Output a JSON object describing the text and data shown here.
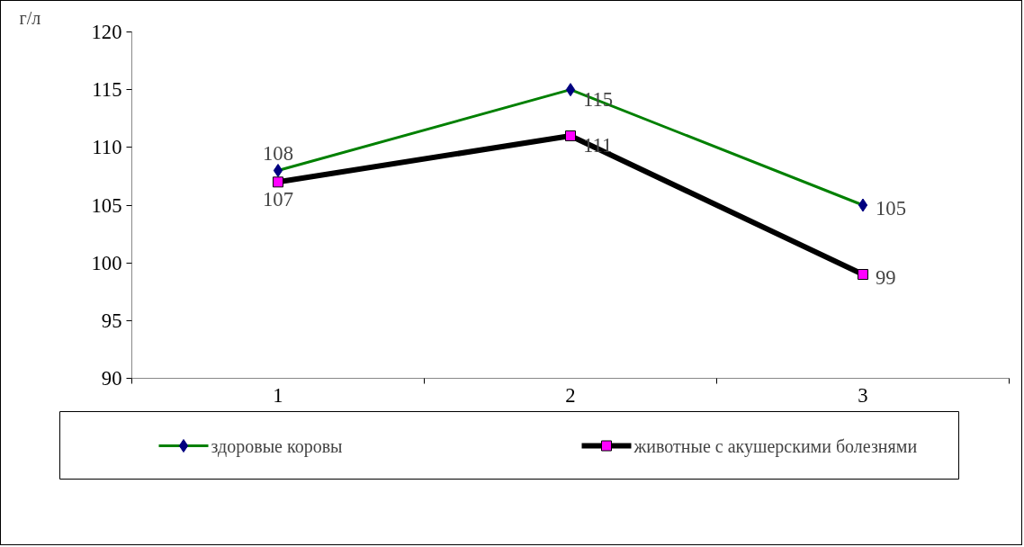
{
  "chart_data": {
    "type": "line",
    "ylabel": "г/л",
    "categories": [
      "1",
      "2",
      "3"
    ],
    "series": [
      {
        "name": "здоровые коровы",
        "color": "#008000",
        "marker": "diamond",
        "colors": [
          "#000080",
          "#000080",
          "#000080"
        ],
        "values": [
          108,
          115,
          105
        ]
      },
      {
        "name": "животные с акушерскими болезнями",
        "color": "#000000",
        "marker": "square",
        "colors": [
          "#ff00ff",
          "#ff00ff",
          "#ff00ff"
        ],
        "values": [
          107,
          111,
          99
        ]
      }
    ],
    "ylim": [
      90,
      120
    ],
    "yticks": [
      90,
      95,
      100,
      105,
      110,
      115,
      120
    ],
    "data_labels": true,
    "grid": false,
    "legend": "bottom",
    "line_style": "solid"
  }
}
